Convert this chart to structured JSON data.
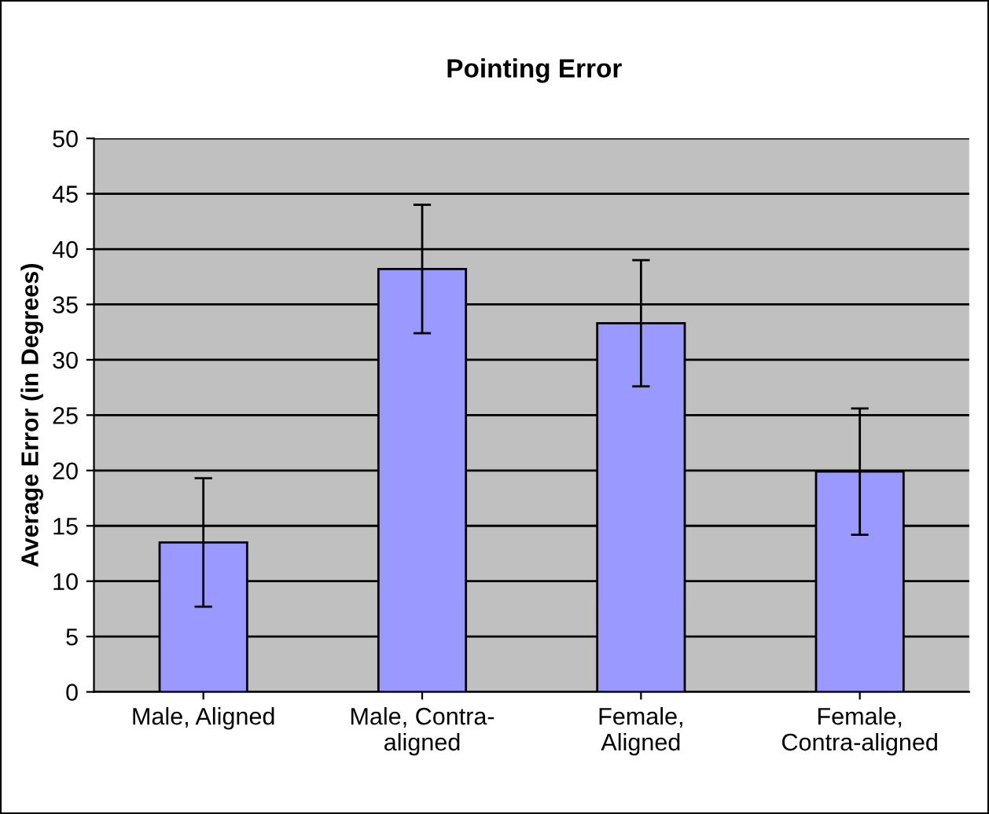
{
  "chart_data": {
    "type": "bar",
    "title": "Pointing Error",
    "ylabel": "Average Error (in Degrees)",
    "categories": [
      "Male, Aligned",
      "Male, Contra-\naligned",
      "Female,\nAligned",
      "Female,\nContra-aligned"
    ],
    "values": [
      13.5,
      38.2,
      33.3,
      19.9
    ],
    "errors": [
      5.8,
      5.8,
      5.7,
      5.7
    ],
    "color": "#9999ff",
    "ylim": [
      0,
      50
    ],
    "yticks": [
      0,
      5,
      10,
      15,
      20,
      25,
      30,
      35,
      40,
      45,
      50
    ],
    "grid": "y"
  }
}
